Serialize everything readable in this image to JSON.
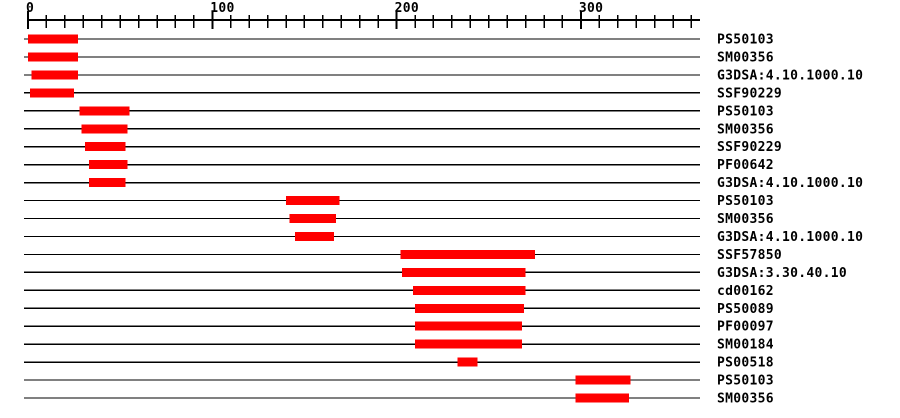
{
  "chart_data": {
    "type": "bar",
    "subtype": "protein-domain-span-plot",
    "title": "",
    "xlabel": "",
    "ylabel": "",
    "grid": false,
    "legend_position": "right-row-labels",
    "background_color": "#ffffff",
    "bar_color": "#ff0000",
    "line_color": "#000000",
    "text_color": "#000000",
    "axis": {
      "min": 0,
      "max": 360,
      "minor_tick_step": 10,
      "major_tick_step": 100,
      "major_tick_labels": [
        "0",
        "100",
        "200",
        "300"
      ]
    },
    "rows": [
      {
        "label": "PS50103",
        "start": 0,
        "end": 27
      },
      {
        "label": "SM00356",
        "start": 0,
        "end": 27
      },
      {
        "label": "G3DSA:4.10.1000.10",
        "start": 2,
        "end": 27
      },
      {
        "label": "SSF90229",
        "start": 1,
        "end": 25
      },
      {
        "label": "PS50103",
        "start": 28,
        "end": 55
      },
      {
        "label": "SM00356",
        "start": 29,
        "end": 54
      },
      {
        "label": "SSF90229",
        "start": 31,
        "end": 53
      },
      {
        "label": "PF00642",
        "start": 33,
        "end": 54
      },
      {
        "label": "G3DSA:4.10.1000.10",
        "start": 33,
        "end": 53
      },
      {
        "label": "PS50103",
        "start": 140,
        "end": 169
      },
      {
        "label": "SM00356",
        "start": 142,
        "end": 167
      },
      {
        "label": "G3DSA:4.10.1000.10",
        "start": 145,
        "end": 166
      },
      {
        "label": "SSF57850",
        "start": 202,
        "end": 275
      },
      {
        "label": "G3DSA:3.30.40.10",
        "start": 203,
        "end": 270
      },
      {
        "label": "cd00162",
        "start": 209,
        "end": 270
      },
      {
        "label": "PS50089",
        "start": 210,
        "end": 269
      },
      {
        "label": "PF00097",
        "start": 210,
        "end": 268
      },
      {
        "label": "SM00184",
        "start": 210,
        "end": 268
      },
      {
        "label": "PS00518",
        "start": 233,
        "end": 244
      },
      {
        "label": "PS50103",
        "start": 297,
        "end": 327
      },
      {
        "label": "SM00356",
        "start": 297,
        "end": 326
      }
    ]
  }
}
